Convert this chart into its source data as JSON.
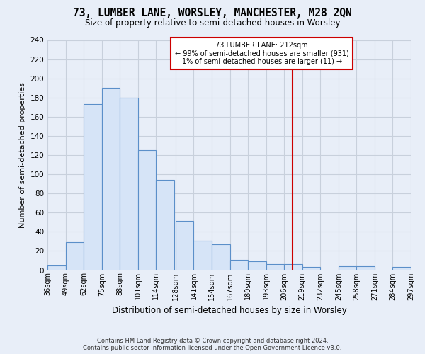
{
  "title": "73, LUMBER LANE, WORSLEY, MANCHESTER, M28 2QN",
  "subtitle": "Size of property relative to semi-detached houses in Worsley",
  "xlabel": "Distribution of semi-detached houses by size in Worsley",
  "ylabel": "Number of semi-detached properties",
  "footer_line1": "Contains HM Land Registry data © Crown copyright and database right 2024.",
  "footer_line2": "Contains public sector information licensed under the Open Government Licence v3.0.",
  "bin_labels": [
    "36sqm",
    "49sqm",
    "62sqm",
    "75sqm",
    "88sqm",
    "101sqm",
    "114sqm",
    "128sqm",
    "141sqm",
    "154sqm",
    "167sqm",
    "180sqm",
    "193sqm",
    "206sqm",
    "219sqm",
    "232sqm",
    "245sqm",
    "258sqm",
    "271sqm",
    "284sqm",
    "297sqm"
  ],
  "bar_values": [
    5,
    29,
    173,
    190,
    180,
    125,
    94,
    51,
    31,
    27,
    11,
    9,
    6,
    6,
    3,
    0,
    4,
    4,
    0,
    3
  ],
  "bin_edges": [
    36,
    49,
    62,
    75,
    88,
    101,
    114,
    128,
    141,
    154,
    167,
    180,
    193,
    206,
    219,
    232,
    245,
    258,
    271,
    284,
    297
  ],
  "bar_color": "#d6e4f7",
  "bar_edge_color": "#5b8fc9",
  "property_value": 212,
  "vline_color": "#cc0000",
  "annotation_line1": "73 LUMBER LANE: 212sqm",
  "annotation_line2": "← 99% of semi-detached houses are smaller (931)",
  "annotation_line3": "1% of semi-detached houses are larger (11) →",
  "annotation_box_edge_color": "#cc0000",
  "background_color": "#e8eef8",
  "grid_color": "#c8d0dc",
  "ylim_max": 240,
  "yticks": [
    0,
    20,
    40,
    60,
    80,
    100,
    120,
    140,
    160,
    180,
    200,
    220,
    240
  ]
}
